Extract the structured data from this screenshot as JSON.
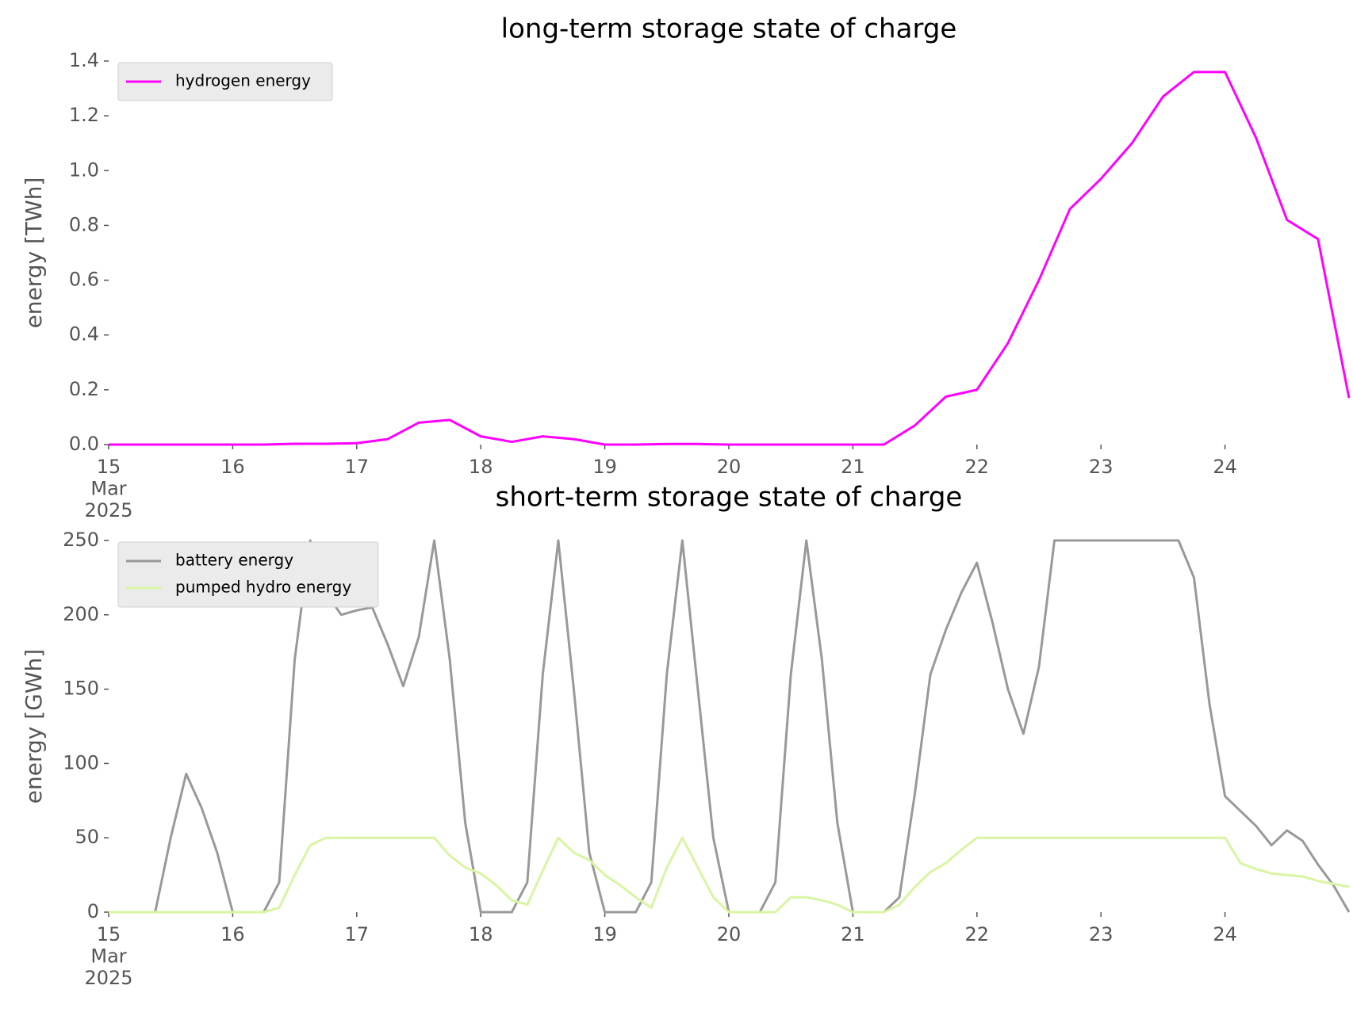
{
  "chart_data": [
    {
      "type": "line",
      "title": "long-term storage state of charge",
      "ylabel": "energy [TWh]",
      "x": [
        15,
        15.25,
        15.5,
        15.75,
        16,
        16.25,
        16.5,
        16.75,
        17,
        17.25,
        17.5,
        17.75,
        18,
        18.25,
        18.5,
        18.75,
        19,
        19.25,
        19.5,
        19.75,
        20,
        20.25,
        20.5,
        20.75,
        21,
        21.25,
        21.5,
        21.75,
        22,
        22.25,
        22.5,
        22.75,
        23,
        23.25,
        23.5,
        23.75,
        24,
        24.25,
        24.5,
        24.75,
        25
      ],
      "series": [
        {
          "name": "hydrogen energy",
          "color": "#ff00ff",
          "values": [
            0,
            0,
            0,
            0,
            0,
            0,
            0.003,
            0.003,
            0.005,
            0.02,
            0.08,
            0.09,
            0.03,
            0.01,
            0.03,
            0.02,
            0,
            0,
            0.002,
            0.002,
            0,
            0,
            0,
            0,
            0,
            0,
            0.07,
            0.175,
            0.2,
            0.37,
            0.6,
            0.86,
            0.97,
            1.1,
            1.27,
            1.36,
            1.36,
            1.12,
            0.82,
            0.75,
            0.17
          ]
        }
      ],
      "xlim": [
        15,
        25
      ],
      "xticks": [
        {
          "value": 15,
          "label": "15\nMar\n2025"
        },
        16,
        17,
        18,
        19,
        20,
        21,
        22,
        23,
        24
      ],
      "ylim": [
        0,
        1.4
      ],
      "yticks": [
        {
          "value": 0,
          "label": "0.0"
        },
        0.2,
        0.4,
        0.6,
        0.8,
        {
          "value": 1,
          "label": "1.0"
        },
        1.2,
        1.4
      ],
      "legend": "upper left",
      "grid": false
    },
    {
      "type": "line",
      "title": "short-term storage state of charge",
      "ylabel": "energy [GWh]",
      "x": [
        15,
        15.125,
        15.25,
        15.375,
        15.5,
        15.625,
        15.75,
        15.875,
        16,
        16.125,
        16.25,
        16.375,
        16.5,
        16.625,
        16.75,
        16.875,
        17,
        17.125,
        17.25,
        17.375,
        17.5,
        17.625,
        17.75,
        17.875,
        18,
        18.125,
        18.25,
        18.375,
        18.5,
        18.625,
        18.75,
        18.875,
        19,
        19.125,
        19.25,
        19.375,
        19.5,
        19.625,
        19.75,
        19.875,
        20,
        20.125,
        20.25,
        20.375,
        20.5,
        20.625,
        20.75,
        20.875,
        21,
        21.125,
        21.25,
        21.375,
        21.5,
        21.625,
        21.75,
        21.875,
        22,
        22.125,
        22.25,
        22.375,
        22.5,
        22.625,
        22.75,
        22.875,
        23,
        23.125,
        23.25,
        23.375,
        23.5,
        23.625,
        23.75,
        23.875,
        24,
        24.125,
        24.25,
        24.375,
        24.5,
        24.625,
        24.75,
        24.875,
        25
      ],
      "series": [
        {
          "name": "battery energy",
          "color": "#999999",
          "values": [
            0,
            0,
            0,
            0,
            50,
            93,
            70,
            40,
            0,
            0,
            0,
            20,
            170,
            250,
            215,
            200,
            203,
            205,
            180,
            152,
            185,
            250,
            170,
            60,
            0,
            0,
            0,
            20,
            160,
            250,
            150,
            40,
            0,
            0,
            0,
            20,
            160,
            250,
            150,
            50,
            0,
            0,
            0,
            20,
            160,
            250,
            170,
            60,
            0,
            0,
            0,
            10,
            80,
            160,
            190,
            215,
            235,
            195,
            150,
            120,
            165,
            250,
            250,
            250,
            250,
            250,
            250,
            250,
            250,
            250,
            225,
            140,
            78,
            68,
            58,
            45,
            55,
            48,
            32,
            18,
            0
          ]
        },
        {
          "name": "pumped hydro energy",
          "color": "#d8f5a2",
          "values": [
            0,
            0,
            0,
            0,
            0,
            0,
            0,
            0,
            0,
            0,
            0,
            3,
            25,
            45,
            50,
            50,
            50,
            50,
            50,
            50,
            50,
            50,
            38,
            30,
            26,
            18,
            8,
            5,
            28,
            50,
            40,
            35,
            25,
            18,
            10,
            3,
            30,
            50,
            30,
            10,
            0,
            0,
            0,
            0,
            10,
            10,
            8,
            5,
            0,
            0,
            0,
            5,
            17,
            27,
            33,
            42,
            50,
            50,
            50,
            50,
            50,
            50,
            50,
            50,
            50,
            50,
            50,
            50,
            50,
            50,
            50,
            50,
            50,
            33,
            29,
            26,
            25,
            24,
            21,
            19,
            17
          ]
        }
      ],
      "xlim": [
        15,
        25
      ],
      "xticks": [
        {
          "value": 15,
          "label": "15\nMar\n2025"
        },
        16,
        17,
        18,
        19,
        20,
        21,
        22,
        23,
        24
      ],
      "ylim": [
        0,
        250
      ],
      "yticks": [
        0,
        50,
        100,
        150,
        200,
        250
      ],
      "legend": "upper left",
      "grid": false
    }
  ]
}
